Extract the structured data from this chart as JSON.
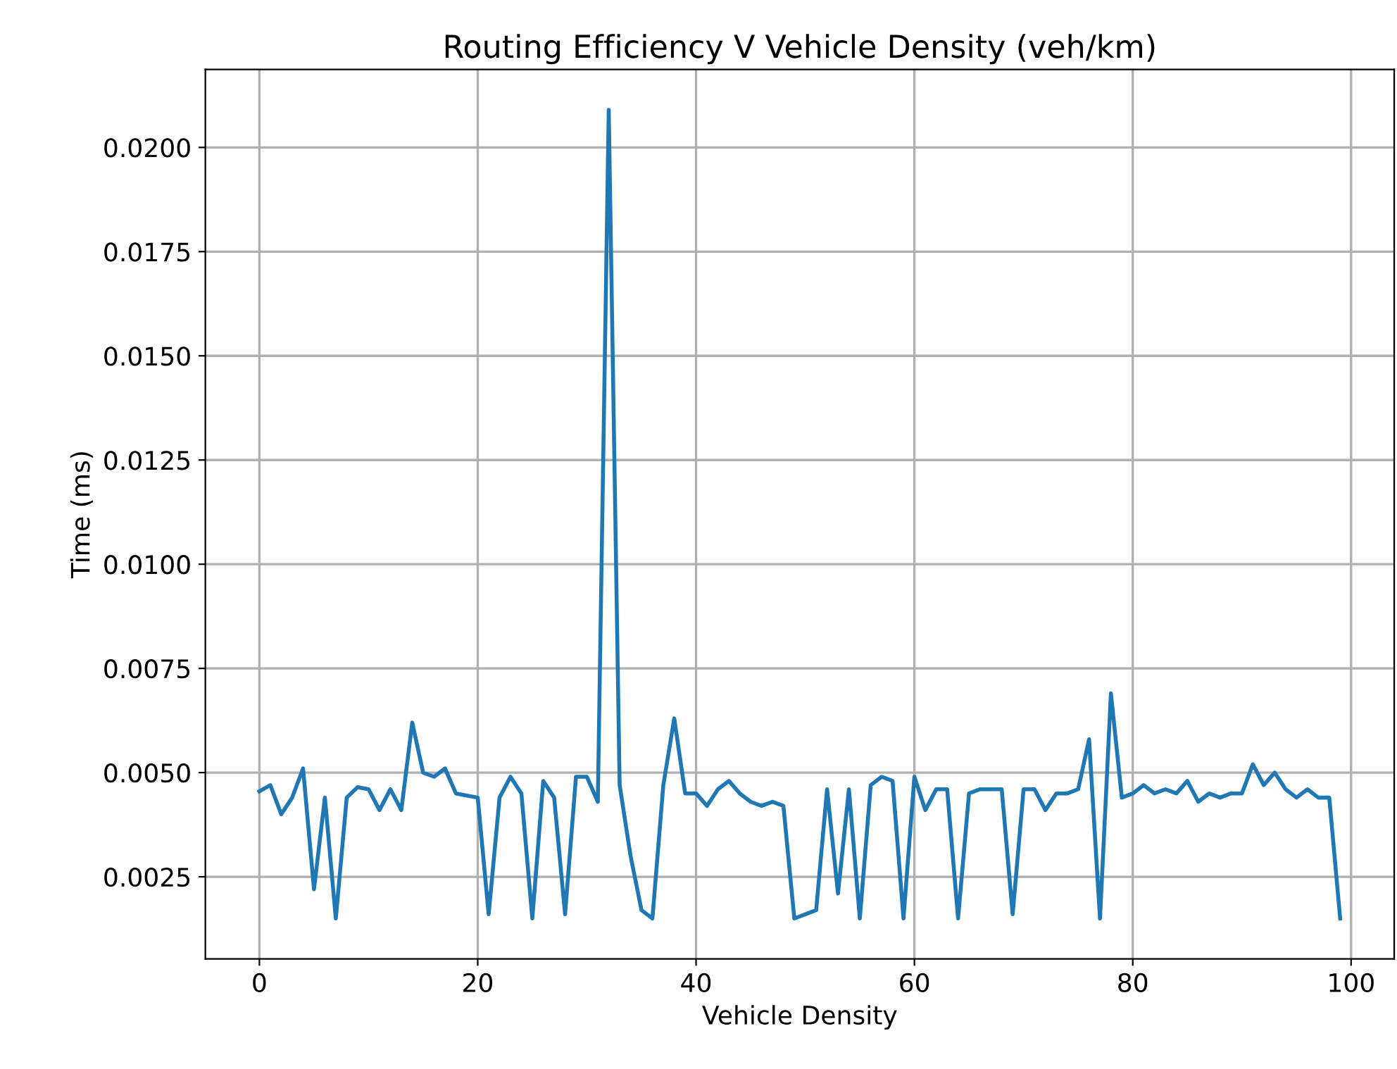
{
  "chart_data": {
    "type": "line",
    "title": "Routing Efficiency V Vehicle Density (veh/km)",
    "xlabel": "Vehicle Density",
    "ylabel": "Time (ms)",
    "x": [
      0,
      1,
      2,
      3,
      4,
      5,
      6,
      7,
      8,
      9,
      10,
      11,
      12,
      13,
      14,
      15,
      16,
      17,
      18,
      19,
      20,
      21,
      22,
      23,
      24,
      25,
      26,
      27,
      28,
      29,
      30,
      31,
      32,
      33,
      34,
      35,
      36,
      37,
      38,
      39,
      40,
      41,
      42,
      43,
      44,
      45,
      46,
      47,
      48,
      49,
      50,
      51,
      52,
      53,
      54,
      55,
      56,
      57,
      58,
      59,
      60,
      61,
      62,
      63,
      64,
      65,
      66,
      67,
      68,
      69,
      70,
      71,
      72,
      73,
      74,
      75,
      76,
      77,
      78,
      79,
      80,
      81,
      82,
      83,
      84,
      85,
      86,
      87,
      88,
      89,
      90,
      91,
      92,
      93,
      94,
      95,
      96,
      97,
      98,
      99
    ],
    "series": [
      {
        "color": "#1f77b4",
        "values": [
          0.00455,
          0.0047,
          0.004,
          0.0044,
          0.0051,
          0.0022,
          0.0044,
          0.0015,
          0.0044,
          0.00465,
          0.0046,
          0.0041,
          0.0046,
          0.0041,
          0.0062,
          0.005,
          0.0049,
          0.0051,
          0.0045,
          0.00445,
          0.0044,
          0.0016,
          0.0044,
          0.0049,
          0.0045,
          0.0015,
          0.0048,
          0.0044,
          0.0016,
          0.0049,
          0.0049,
          0.0043,
          0.0209,
          0.0047,
          0.003,
          0.0017,
          0.0015,
          0.0047,
          0.0063,
          0.0045,
          0.0045,
          0.0042,
          0.0046,
          0.0048,
          0.0045,
          0.0043,
          0.0042,
          0.0043,
          0.0042,
          0.0015,
          0.0016,
          0.0017,
          0.0046,
          0.0021,
          0.0046,
          0.0015,
          0.0047,
          0.0049,
          0.0048,
          0.0015,
          0.0049,
          0.0041,
          0.0046,
          0.0046,
          0.0015,
          0.0045,
          0.0046,
          0.0046,
          0.0046,
          0.0016,
          0.0046,
          0.0046,
          0.0041,
          0.0045,
          0.0045,
          0.0046,
          0.0058,
          0.0015,
          0.0069,
          0.0044,
          0.0045,
          0.0047,
          0.0045,
          0.0046,
          0.0045,
          0.0048,
          0.0043,
          0.0045,
          0.0044,
          0.0045,
          0.0045,
          0.0052,
          0.0047,
          0.005,
          0.0046,
          0.0044,
          0.0046,
          0.0044,
          0.0044,
          0.0015
        ]
      }
    ],
    "xlim": [
      -4.95,
      103.95
    ],
    "xticks": [
      0,
      20,
      40,
      60,
      80,
      100
    ],
    "ylim": [
      0.00053,
      0.02187
    ],
    "yticks": [
      {
        "value": 0.0025,
        "label": "0.0025"
      },
      {
        "value": 0.005,
        "label": "0.0050"
      },
      {
        "value": 0.0075,
        "label": "0.0075"
      },
      {
        "value": 0.01,
        "label": "0.0100"
      },
      {
        "value": 0.0125,
        "label": "0.0125"
      },
      {
        "value": 0.015,
        "label": "0.0150"
      },
      {
        "value": 0.0175,
        "label": "0.0175"
      },
      {
        "value": 0.02,
        "label": "0.0200"
      }
    ],
    "grid": true,
    "marker": "none",
    "line_style": "solid"
  }
}
